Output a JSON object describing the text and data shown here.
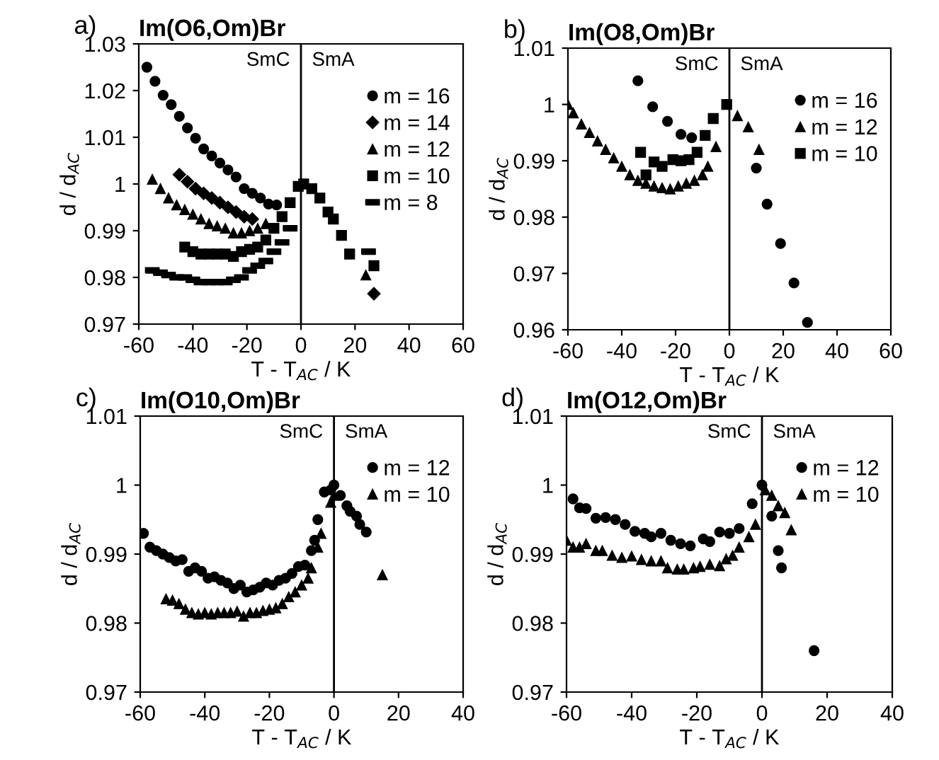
{
  "chart_data": [
    {
      "type": "scatter",
      "title": "Im(O6,Om)Br",
      "xlabel": "T - T$_{AC}$ / K",
      "ylabel": "d / d$_{AC}$",
      "annotations": [
        "a)",
        "SmC",
        "SmA"
      ],
      "xlim": [
        -60,
        60
      ],
      "xticks": [
        -60,
        -40,
        -20,
        0,
        20,
        40,
        60
      ],
      "ylim": [
        0.97,
        1.03
      ],
      "yticks": [
        0.97,
        0.98,
        0.99,
        1,
        1.01,
        1.02,
        1.03
      ],
      "grid": false,
      "legend": "top right",
      "ref_lines": [
        {
          "axis": "x",
          "value": 0,
          "color": "#000000"
        }
      ],
      "series": [
        {
          "name": "m = 16",
          "color": "#000000",
          "marker": "circle",
          "x": [
            -57,
            -54,
            -51,
            -48,
            -45,
            -42,
            -39,
            -36,
            -33,
            -30,
            -27,
            -24,
            -21,
            -18,
            -15,
            -12,
            -9
          ],
          "values": [
            1.025,
            1.022,
            1.019,
            1.017,
            1.0145,
            1.012,
            1.0098,
            1.0075,
            1.006,
            1.0045,
            1.003,
            1.0015,
            0.999,
            0.998,
            0.997,
            0.9957,
            0.9955
          ]
        },
        {
          "name": "m = 14",
          "color": "#000000",
          "marker": "diamond",
          "x": [
            -45,
            -42,
            -39,
            -36,
            -33,
            -30,
            -27,
            -24,
            -21,
            -18,
            27
          ],
          "values": [
            1.002,
            1.0005,
            0.999,
            0.998,
            0.997,
            0.996,
            0.995,
            0.994,
            0.993,
            0.9925,
            0.9765
          ]
        },
        {
          "name": "m = 12",
          "color": "#000000",
          "marker": "triangle",
          "x": [
            -55,
            -52,
            -49,
            -46,
            -43,
            -40,
            -37,
            -34,
            -31,
            -28,
            -25,
            -22,
            -19,
            -16,
            -13,
            24
          ],
          "values": [
            1.001,
            0.999,
            0.997,
            0.9955,
            0.9945,
            0.9935,
            0.9925,
            0.9915,
            0.991,
            0.9905,
            0.9895,
            0.9895,
            0.99,
            0.9905,
            0.9915,
            0.9805
          ]
        },
        {
          "name": "m = 10",
          "color": "#000000",
          "marker": "square",
          "x": [
            -43,
            -40,
            -37,
            -34,
            -31,
            -28,
            -25,
            -22,
            -19,
            -16,
            -13,
            -10,
            -7,
            -4,
            -1,
            1,
            4,
            7,
            10,
            12,
            15,
            18,
            27
          ],
          "values": [
            0.9865,
            0.9855,
            0.985,
            0.985,
            0.985,
            0.985,
            0.9845,
            0.9855,
            0.986,
            0.9865,
            0.988,
            0.9905,
            0.993,
            0.996,
            0.9995,
            1.0,
            0.999,
            0.997,
            0.994,
            0.9925,
            0.989,
            0.985,
            0.9825
          ]
        },
        {
          "name": "m = 8",
          "color": "#000000",
          "x": [
            -55,
            -52,
            -49,
            -46,
            -43,
            -40,
            -37,
            -34,
            -31,
            -28,
            -25,
            -22,
            -19,
            -16,
            -13,
            -10,
            -7,
            -4,
            25
          ],
          "values": [
            0.9815,
            0.981,
            0.9805,
            0.98,
            0.98,
            0.9795,
            0.979,
            0.979,
            0.979,
            0.979,
            0.9795,
            0.98,
            0.9815,
            0.9825,
            0.9835,
            0.9855,
            0.9875,
            0.9905,
            0.9855
          ]
        }
      ]
    },
    {
      "type": "scatter",
      "title": "Im(O8,Om)Br",
      "xlabel": "T - T$_{AC}$ / K",
      "ylabel": "d / d$_{AC}$",
      "annotations": [
        "b)",
        "SmC",
        "SmA"
      ],
      "xlim": [
        -60,
        60
      ],
      "xticks": [
        -60,
        -40,
        -20,
        0,
        20,
        40,
        60
      ],
      "ylim": [
        0.96,
        1.01
      ],
      "yticks": [
        0.96,
        0.97,
        0.98,
        0.99,
        1,
        1.01
      ],
      "grid": false,
      "legend": "top right",
      "ref_lines": [
        {
          "axis": "x",
          "value": 0,
          "color": "#000000"
        }
      ],
      "series": [
        {
          "name": "m = 16",
          "color": "#000000",
          "marker": "circle",
          "x": [
            -34,
            -28.5,
            -23,
            -18,
            -14,
            10,
            14,
            19,
            24,
            29
          ],
          "values": [
            1.0042,
            0.9996,
            0.997,
            0.9947,
            0.9941,
            0.9887,
            0.9823,
            0.9753,
            0.9683,
            0.9613
          ]
        },
        {
          "name": "m = 12",
          "color": "#000000",
          "marker": "triangle",
          "x": [
            -60,
            -58,
            -55,
            -52,
            -49,
            -46,
            -43,
            -40,
            -37,
            -34,
            -31,
            -28,
            -25,
            -22,
            -19,
            -16,
            -13,
            -10,
            -8,
            -5,
            3,
            7,
            11
          ],
          "values": [
            1.0,
            0.9985,
            0.9965,
            0.995,
            0.9935,
            0.992,
            0.9905,
            0.989,
            0.9875,
            0.9865,
            0.986,
            0.9855,
            0.9852,
            0.985,
            0.9855,
            0.986,
            0.9865,
            0.9875,
            0.989,
            0.9925,
            0.998,
            0.996,
            0.992
          ]
        },
        {
          "name": "m = 10",
          "color": "#000000",
          "marker": "square",
          "x": [
            -33,
            -31,
            -28,
            -25,
            -21,
            -18,
            -15,
            -12,
            -9,
            -6,
            -1
          ],
          "values": [
            0.9915,
            0.9875,
            0.9898,
            0.989,
            0.9902,
            0.99,
            0.9902,
            0.9915,
            0.9945,
            0.9975,
            1.0
          ]
        }
      ]
    },
    {
      "type": "scatter",
      "title": "Im(O10,Om)Br",
      "xlabel": "T - T$_{AC}$ / K",
      "ylabel": "d / d$_{AC}$",
      "annotations": [
        "c)",
        "SmC",
        "SmA"
      ],
      "xlim": [
        -60,
        40
      ],
      "xticks": [
        -60,
        -40,
        -20,
        0,
        20,
        40
      ],
      "ylim": [
        0.97,
        1.01
      ],
      "yticks": [
        0.97,
        0.98,
        0.99,
        1,
        1.01
      ],
      "grid": false,
      "legend": "top right",
      "ref_lines": [
        {
          "axis": "x",
          "value": 0,
          "color": "#000000"
        }
      ],
      "series": [
        {
          "name": "m = 12",
          "color": "#000000",
          "marker": "circle",
          "x": [
            -59,
            -57,
            -55,
            -53,
            -51,
            -49,
            -47,
            -45,
            -43,
            -41,
            -39,
            -37,
            -35,
            -33,
            -31,
            -29,
            -27,
            -25,
            -23,
            -21,
            -19,
            -17,
            -15,
            -13,
            -11,
            -9,
            -7,
            -6,
            -5,
            -3,
            -1,
            0,
            2,
            4,
            5,
            7,
            8,
            10
          ],
          "values": [
            0.993,
            0.991,
            0.9905,
            0.99,
            0.9895,
            0.989,
            0.9892,
            0.9875,
            0.988,
            0.9875,
            0.9865,
            0.9867,
            0.9862,
            0.9858,
            0.985,
            0.9855,
            0.9845,
            0.9848,
            0.9852,
            0.9858,
            0.9855,
            0.9862,
            0.9865,
            0.9872,
            0.9882,
            0.9884,
            0.9905,
            0.992,
            0.995,
            0.999,
            0.9993,
            1.0,
            0.9985,
            0.997,
            0.9962,
            0.9955,
            0.9943,
            0.9932
          ]
        },
        {
          "name": "m = 10",
          "color": "#000000",
          "marker": "triangle",
          "x": [
            -52,
            -50,
            -48,
            -46,
            -44,
            -42,
            -40,
            -38,
            -36,
            -34,
            -32,
            -30,
            -28,
            -26,
            -24,
            -22,
            -20,
            -18,
            -16,
            -14,
            -12,
            -10,
            -8,
            -7,
            -5,
            -4,
            -1,
            0,
            15
          ],
          "values": [
            0.9835,
            0.9833,
            0.9828,
            0.982,
            0.9815,
            0.9813,
            0.9815,
            0.9813,
            0.9815,
            0.9815,
            0.9815,
            0.9817,
            0.981,
            0.9815,
            0.9815,
            0.9818,
            0.982,
            0.9822,
            0.9828,
            0.9838,
            0.9845,
            0.9855,
            0.9865,
            0.988,
            0.991,
            0.993,
            0.9975,
            0.9985,
            0.987
          ]
        }
      ]
    },
    {
      "type": "scatter",
      "title": "Im(O12,Om)Br",
      "xlabel": "T - T$_{AC}$ / K",
      "ylabel": "d / d$_{AC}$",
      "annotations": [
        "d)",
        "SmC",
        "SmA"
      ],
      "xlim": [
        -60,
        40
      ],
      "xticks": [
        -60,
        -40,
        -20,
        0,
        20,
        40
      ],
      "ylim": [
        0.97,
        1.01
      ],
      "yticks": [
        0.97,
        0.98,
        0.99,
        1,
        1.01
      ],
      "grid": false,
      "legend": "top right",
      "ref_lines": [
        {
          "axis": "x",
          "value": 0,
          "color": "#000000"
        }
      ],
      "series": [
        {
          "name": "m = 12",
          "color": "#000000",
          "marker": "circle",
          "x": [
            -58,
            -56,
            -54,
            -51,
            -48,
            -45,
            -42,
            -39,
            -36,
            -34,
            -31,
            -28,
            -25,
            -22,
            -18,
            -16,
            -13,
            -10,
            -7,
            -3,
            0,
            3,
            5,
            6,
            16
          ],
          "values": [
            0.998,
            0.9967,
            0.9966,
            0.9952,
            0.9953,
            0.995,
            0.9943,
            0.9933,
            0.993,
            0.9925,
            0.993,
            0.992,
            0.9915,
            0.9912,
            0.9922,
            0.9918,
            0.9932,
            0.993,
            0.9937,
            0.9973,
            1.0,
            0.9955,
            0.9905,
            0.988,
            0.976
          ]
        },
        {
          "name": "m = 10",
          "color": "#000000",
          "marker": "triangle",
          "x": [
            -60,
            -58,
            -56,
            -54,
            -51,
            -49,
            -46,
            -43,
            -40,
            -37,
            -34,
            -31,
            -29,
            -26,
            -24,
            -21,
            -19,
            -16,
            -13,
            -11,
            -9,
            -7,
            -4,
            -2,
            1,
            3,
            5,
            7,
            9
          ],
          "values": [
            0.992,
            0.991,
            0.991,
            0.9915,
            0.9905,
            0.9905,
            0.9898,
            0.9895,
            0.9897,
            0.9892,
            0.989,
            0.989,
            0.988,
            0.9878,
            0.9878,
            0.988,
            0.9882,
            0.9885,
            0.9883,
            0.9893,
            0.9898,
            0.991,
            0.9925,
            0.9943,
            0.9993,
            0.9985,
            0.997,
            0.996,
            0.9935
          ]
        }
      ]
    }
  ]
}
